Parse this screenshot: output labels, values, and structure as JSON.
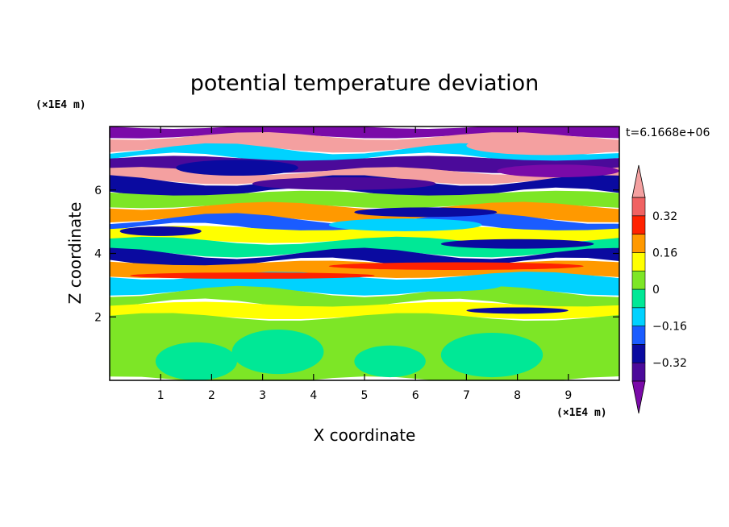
{
  "chart_data": {
    "type": "heatmap",
    "title": "potential temperature deviation",
    "xlabel": "X coordinate",
    "ylabel": "Z coordinate",
    "x_unit": "(×1E4 m)",
    "y_unit": "(×1E4 m)",
    "time_label": "t=6.1668e+06",
    "xlim": [
      0,
      10
    ],
    "ylim": [
      0,
      8
    ],
    "x_ticks": [
      "1",
      "2",
      "3",
      "4",
      "5",
      "6",
      "7",
      "8",
      "9"
    ],
    "x_tick_values": [
      1,
      2,
      3,
      4,
      5,
      6,
      7,
      8,
      9
    ],
    "y_ticks": [
      "2",
      "4",
      "6"
    ],
    "y_tick_values": [
      2,
      4,
      6
    ],
    "colorbar": {
      "levels": [
        -0.4,
        -0.32,
        -0.24,
        -0.16,
        -0.08,
        0,
        0.08,
        0.16,
        0.24,
        0.32,
        0.4
      ],
      "colors": [
        "#4b0a9a",
        "#0a0aa0",
        "#1a5cff",
        "#00d2ff",
        "#00e896",
        "#7de626",
        "#ffff00",
        "#ff9900",
        "#ff2200",
        "#f06262"
      ],
      "under_color": "#7a0aa8",
      "over_color": "#f4a0a0",
      "labels": [
        "0.32",
        "0.16",
        "0",
        "−0.16",
        "−0.32"
      ],
      "label_values": [
        0.32,
        0.16,
        0,
        -0.16,
        -0.32
      ]
    },
    "field_bands": [
      {
        "z_top": 8.0,
        "z_bot": 7.7,
        "class": "under"
      },
      {
        "z_top": 7.7,
        "z_bot": 7.3,
        "class": "over"
      },
      {
        "z_top": 7.3,
        "z_bot": 7.0,
        "class": 3
      },
      {
        "z_top": 7.0,
        "z_bot": 6.6,
        "class": 0
      },
      {
        "z_top": 6.6,
        "z_bot": 6.3,
        "class": "over"
      },
      {
        "z_top": 6.3,
        "z_bot": 5.9,
        "class": 1
      },
      {
        "z_top": 5.9,
        "z_bot": 5.5,
        "class": 5
      },
      {
        "z_top": 5.5,
        "z_bot": 5.1,
        "class": 7
      },
      {
        "z_top": 5.1,
        "z_bot": 4.8,
        "class": 2
      },
      {
        "z_top": 4.8,
        "z_bot": 4.4,
        "class": 6
      },
      {
        "z_top": 4.4,
        "z_bot": 4.0,
        "class": 4
      },
      {
        "z_top": 4.0,
        "z_bot": 3.7,
        "class": 1
      },
      {
        "z_top": 3.7,
        "z_bot": 3.3,
        "class": 7
      },
      {
        "z_top": 3.3,
        "z_bot": 2.8,
        "class": 3
      },
      {
        "z_top": 2.8,
        "z_bot": 2.4,
        "class": 5
      },
      {
        "z_top": 2.4,
        "z_bot": 2.0,
        "class": 6
      },
      {
        "z_top": 2.0,
        "z_bot": 0.0,
        "class": 5
      }
    ],
    "field_features": [
      {
        "kind": "blob",
        "x": 3.3,
        "z": 0.9,
        "rx": 0.9,
        "rz": 0.7,
        "class": 4
      },
      {
        "kind": "blob",
        "x": 1.7,
        "z": 0.6,
        "rx": 0.8,
        "rz": 0.6,
        "class": 4
      },
      {
        "kind": "blob",
        "x": 7.5,
        "z": 0.8,
        "rx": 1.0,
        "rz": 0.7,
        "class": 4
      },
      {
        "kind": "blob",
        "x": 5.5,
        "z": 0.6,
        "rx": 0.7,
        "rz": 0.5,
        "class": 4
      },
      {
        "kind": "blob",
        "x": 6.2,
        "z": 5.3,
        "rx": 1.4,
        "rz": 0.15,
        "class": 1
      },
      {
        "kind": "blob",
        "x": 8.6,
        "z": 7.4,
        "rx": 1.6,
        "rz": 0.3,
        "class": "over"
      },
      {
        "kind": "blob",
        "x": 4.6,
        "z": 6.2,
        "rx": 1.8,
        "rz": 0.2,
        "class": 0
      },
      {
        "kind": "blob",
        "x": 8.8,
        "z": 6.6,
        "rx": 1.2,
        "rz": 0.2,
        "class": "under"
      },
      {
        "kind": "blob",
        "x": 2.5,
        "z": 6.7,
        "rx": 1.2,
        "rz": 0.25,
        "class": 1
      },
      {
        "kind": "blob",
        "x": 6.8,
        "z": 3.6,
        "rx": 2.5,
        "rz": 0.12,
        "class": 8
      },
      {
        "kind": "blob",
        "x": 2.8,
        "z": 3.3,
        "rx": 2.4,
        "rz": 0.1,
        "class": 8
      },
      {
        "kind": "blob",
        "x": 6.5,
        "z": 3.0,
        "rx": 1.2,
        "rz": 0.2,
        "class": 3
      },
      {
        "kind": "blob",
        "x": 8.0,
        "z": 4.3,
        "rx": 1.5,
        "rz": 0.15,
        "class": 1
      },
      {
        "kind": "blob",
        "x": 1.0,
        "z": 4.7,
        "rx": 0.8,
        "rz": 0.15,
        "class": 1
      },
      {
        "kind": "blob",
        "x": 5.8,
        "z": 4.9,
        "rx": 1.5,
        "rz": 0.2,
        "class": 3
      },
      {
        "kind": "blob",
        "x": 8.0,
        "z": 2.2,
        "rx": 1.0,
        "rz": 0.1,
        "class": 1
      }
    ]
  }
}
